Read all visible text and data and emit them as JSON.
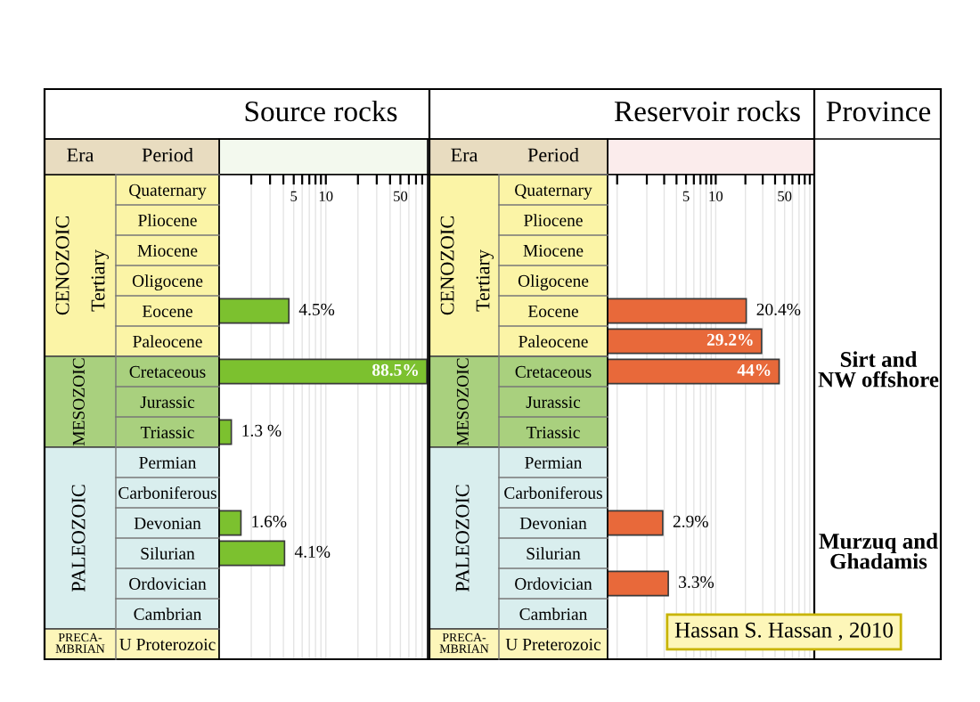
{
  "chart_data": [
    {
      "type": "bar",
      "orientation": "horizontal",
      "title": "Source rocks",
      "log": "x",
      "categories": [
        "Quaternary",
        "Pliocene",
        "Miocene",
        "Oligocene",
        "Eocene",
        "Paleocene",
        "Cretaceous",
        "Jurassic",
        "Triassic",
        "Permian",
        "Carboniferous",
        "Devonian",
        "Silurian",
        "Ordovician",
        "Cambrian",
        "U Proterozoic"
      ],
      "values": [
        null,
        null,
        null,
        null,
        4.5,
        null,
        88.5,
        null,
        1.3,
        null,
        null,
        1.6,
        4.1,
        null,
        null,
        null
      ],
      "value_labels": [
        null,
        null,
        null,
        null,
        "4.5%",
        null,
        "88.5%",
        null,
        "1.3 %",
        null,
        null,
        "1.6%",
        "4.1%",
        null,
        null,
        null
      ],
      "color": "#7cc12f",
      "xlim": [
        1,
        90
      ],
      "xticks": [
        {
          "value": 2,
          "label": null
        },
        {
          "value": 3,
          "label": null
        },
        {
          "value": 4,
          "label": null
        },
        5,
        {
          "value": 6,
          "label": null
        },
        {
          "value": 7,
          "label": null
        },
        {
          "value": 8,
          "label": null
        },
        {
          "value": 9,
          "label": null
        },
        10,
        {
          "value": 20,
          "label": null
        },
        {
          "value": 30,
          "label": null
        },
        {
          "value": 40,
          "label": null
        },
        50,
        {
          "value": 60,
          "label": null
        },
        {
          "value": 70,
          "label": null
        },
        {
          "value": 80,
          "label": null
        }
      ],
      "grid": "x",
      "annotations": [
        "Era",
        "Period",
        "CENOZOIC",
        "Tertiary",
        "MESOZOIC",
        "PALEOZOIC",
        "PRECA-\nMBRIAN"
      ]
    },
    {
      "type": "bar",
      "orientation": "horizontal",
      "title": "Reservoir rocks",
      "log": "x",
      "categories": [
        "Quaternary",
        "Pliocene",
        "Miocene",
        "Oligocene",
        "Eocene",
        "Paleocene",
        "Cretaceous",
        "Jurassic",
        "Triassic",
        "Permian",
        "Carboniferous",
        "Devonian",
        "Silurian",
        "Ordovician",
        "Cambrian",
        "U Preterozoic"
      ],
      "values": [
        null,
        null,
        null,
        null,
        20.4,
        29.2,
        44,
        null,
        null,
        null,
        null,
        2.9,
        null,
        3.3,
        null,
        null
      ],
      "value_labels": [
        null,
        null,
        null,
        null,
        "20.4%",
        "29.2%",
        "44%",
        null,
        null,
        null,
        null,
        "2.9%",
        null,
        "3.3%",
        null,
        null
      ],
      "color": "#e8693a",
      "xlim": [
        0.8,
        100
      ],
      "xticks": [
        {
          "value": 1,
          "label": null
        },
        {
          "value": 2,
          "label": null
        },
        {
          "value": 3,
          "label": null
        },
        {
          "value": 4,
          "label": null
        },
        5,
        {
          "value": 6,
          "label": null
        },
        {
          "value": 7,
          "label": null
        },
        {
          "value": 8,
          "label": null
        },
        {
          "value": 9,
          "label": null
        },
        10,
        {
          "value": 20,
          "label": null
        },
        {
          "value": 30,
          "label": null
        },
        {
          "value": 40,
          "label": null
        },
        50,
        {
          "value": 60,
          "label": null
        },
        {
          "value": 70,
          "label": null
        },
        {
          "value": 80,
          "label": null
        },
        {
          "value": 90,
          "label": null
        }
      ],
      "grid": "x",
      "annotations": [
        "Era",
        "Period",
        "CENOZOIC",
        "Tertiary",
        "MESOZOIC",
        "PALEOZOIC",
        "PRECA-\nMBRIAN",
        "Province",
        "Sirt and\nNW offshore",
        "Murzuq and\nGhadamis",
        "Hassan S. Hassan , 2010"
      ]
    }
  ]
}
